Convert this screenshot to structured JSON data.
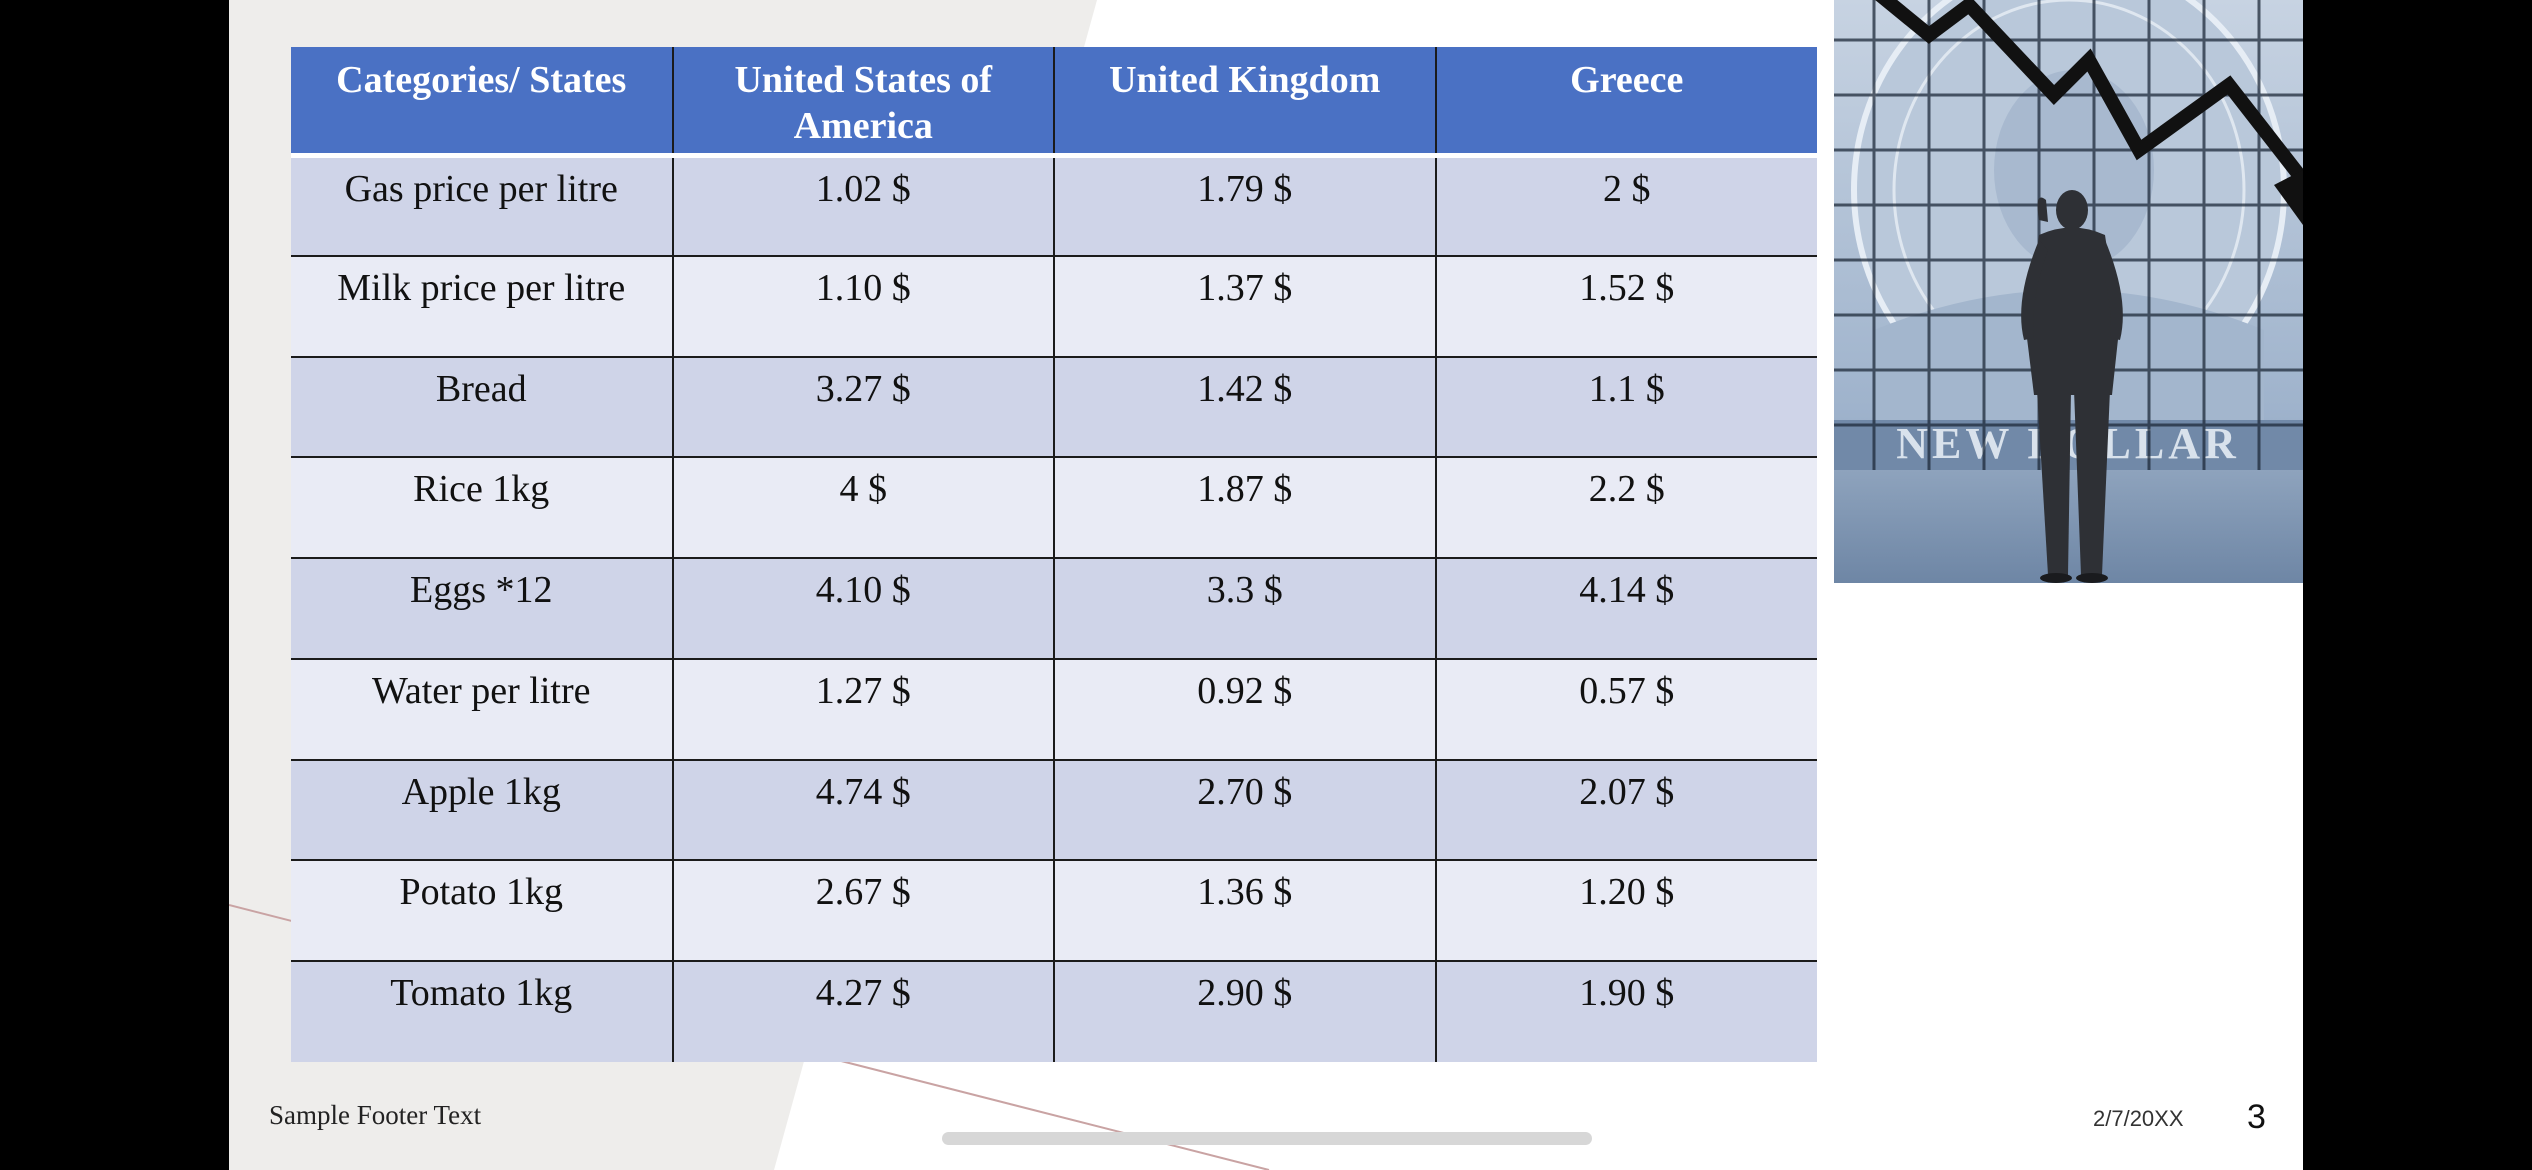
{
  "table": {
    "headers": [
      "Categories/ States",
      "United States of America",
      "United Kingdom",
      "Greece"
    ],
    "rows": [
      [
        "Gas price per litre",
        "1.02 $",
        "1.79 $",
        "2 $"
      ],
      [
        "Milk price per litre",
        "1.10 $",
        "1.37 $",
        "1.52 $"
      ],
      [
        "Bread",
        "3.27 $",
        "1.42 $",
        "1.1 $"
      ],
      [
        "Rice 1kg",
        "4 $",
        "1.87 $",
        "2.2 $"
      ],
      [
        "Eggs *12",
        "4.10 $",
        "3.3 $",
        "4.14 $"
      ],
      [
        "Water per litre",
        "1.27 $",
        "0.92 $",
        "0.57 $"
      ],
      [
        "Apple 1kg",
        "4.74 $",
        "2.70 $",
        "2.07 $"
      ],
      [
        "Potato 1kg",
        "2.67 $",
        "1.36 $",
        "1.20 $"
      ],
      [
        "Tomato 1kg",
        "4.27 $",
        "2.90 $",
        "1.90 $"
      ]
    ]
  },
  "footer": {
    "text": "Sample Footer Text",
    "date": "2/7/20XX",
    "slide_number": "3"
  },
  "colors": {
    "header_fill": "#4a71c4",
    "row_odd_fill": "#cfd4e8",
    "row_even_fill": "#e9ebf5",
    "background_shape": "#eeedeb",
    "accent_line": "#c9a3a3"
  },
  "icons": {
    "photo": "businessman-looking-at-falling-graph-over-dollar-bill"
  }
}
